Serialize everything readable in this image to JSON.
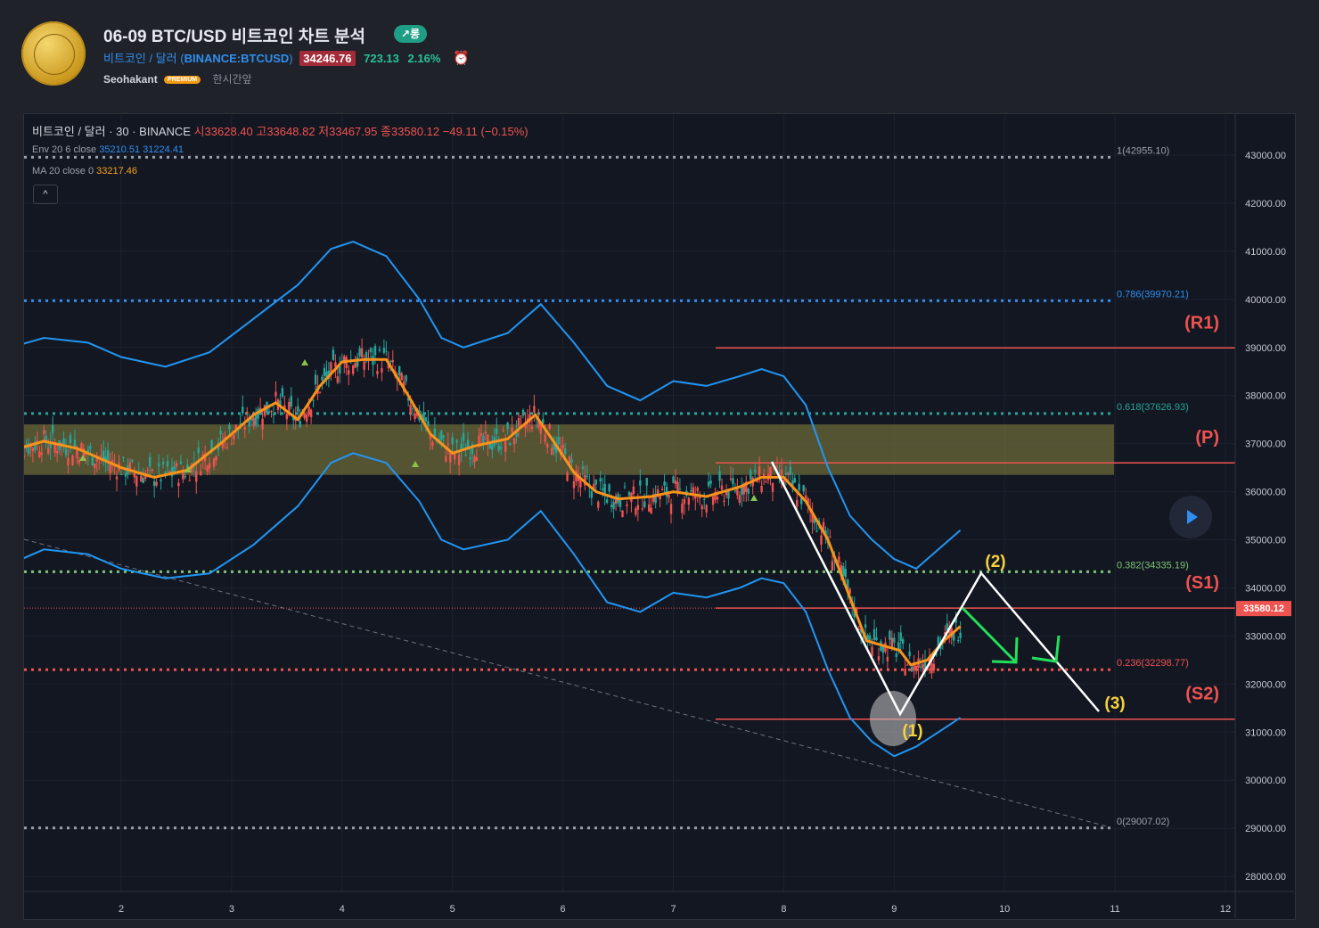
{
  "header": {
    "title": "06-09 BTC/USD 비트코인 차트 분석",
    "long_badge": "↗롱",
    "symbol_name": "비트코인 / 달러",
    "symbol_exchange": "BINANCE:BTCUSD",
    "last_price": "34246.76",
    "change": "723.13",
    "change_pct": "2.16%",
    "author": "Seohakant",
    "premium": "PREMIUM",
    "time_ago": "한시간앞"
  },
  "legend": {
    "symbol": "비트코인 / 달러 · 30 · BINANCE",
    "ohlc": "시33628.40 고33648.82 저33467.95 종33580.12 −49.11 (−0.15%)",
    "env_label": "Env 20 6 close",
    "env_upper": "35210.51",
    "env_lower": "31224.41",
    "ma_label": "MA 20 close 0",
    "ma_value": "33217.46",
    "collapse": "^"
  },
  "colors": {
    "background": "#131722",
    "envelope": "#2196f3",
    "ma": "#f7931a",
    "level_line": "#ef5350",
    "zone": "#6b6a3a",
    "up_candle": "#26a69a",
    "down_candle": "#ef5350",
    "annotation_yellow": "#f5d33a",
    "arrow_green": "#22e05a"
  },
  "chart_data": {
    "type": "candlestick",
    "x_ticks": [
      "2",
      "3",
      "4",
      "5",
      "6",
      "7",
      "8",
      "9",
      "10",
      "11",
      "12"
    ],
    "y_ticks": [
      "43000.00",
      "42000.00",
      "41000.00",
      "40000.00",
      "39000.00",
      "38000.00",
      "37000.00",
      "36000.00",
      "35000.00",
      "34000.00",
      "33000.00",
      "32000.00",
      "31000.00",
      "30000.00",
      "29000.00",
      "28000.00"
    ],
    "ylim": [
      27500,
      43600
    ],
    "current_price": 33580.12,
    "current_price_label": "33580.12",
    "fib_levels": [
      {
        "label": "1(42955.10)",
        "value": 42955.1,
        "color": "#9aa0aa"
      },
      {
        "label": "0.786(39970.21)",
        "value": 39970.21,
        "color": "#2f8ff0"
      },
      {
        "label": "0.618(37626.93)",
        "value": 37626.93,
        "color": "#26a69a"
      },
      {
        "label": "0.382(34335.19)",
        "value": 34335.19,
        "color": "#7cc576"
      },
      {
        "label": "0.236(32298.77)",
        "value": 32298.77,
        "color": "#ef5350"
      },
      {
        "label": "0(29007.02)",
        "value": 29007.02,
        "color": "#9aa0aa"
      }
    ],
    "pivot_levels": [
      {
        "label": "(R1)",
        "value": 38990
      },
      {
        "label": "(P)",
        "value": 36600
      },
      {
        "label": "(S1)",
        "value": 33580
      },
      {
        "label": "(S2)",
        "value": 31270
      }
    ],
    "zone": [
      36350,
      37400
    ],
    "wave_labels": [
      "(1)",
      "(2)",
      "(3)"
    ],
    "ma_series": [
      [
        1.0,
        36850
      ],
      [
        1.3,
        37050
      ],
      [
        1.6,
        36900
      ],
      [
        2.0,
        36500
      ],
      [
        2.3,
        36300
      ],
      [
        2.6,
        36450
      ],
      [
        2.9,
        37000
      ],
      [
        3.2,
        37600
      ],
      [
        3.4,
        37850
      ],
      [
        3.6,
        37500
      ],
      [
        3.8,
        38200
      ],
      [
        4.0,
        38700
      ],
      [
        4.2,
        38750
      ],
      [
        4.4,
        38750
      ],
      [
        4.6,
        38000
      ],
      [
        4.8,
        37200
      ],
      [
        5.0,
        36800
      ],
      [
        5.2,
        36950
      ],
      [
        5.5,
        37100
      ],
      [
        5.75,
        37600
      ],
      [
        5.9,
        37100
      ],
      [
        6.1,
        36400
      ],
      [
        6.3,
        36000
      ],
      [
        6.5,
        35850
      ],
      [
        6.8,
        35900
      ],
      [
        7.0,
        36000
      ],
      [
        7.3,
        35900
      ],
      [
        7.6,
        36100
      ],
      [
        7.8,
        36300
      ],
      [
        8.0,
        36300
      ],
      [
        8.2,
        35800
      ],
      [
        8.4,
        35000
      ],
      [
        8.6,
        33800
      ],
      [
        8.75,
        32900
      ],
      [
        8.9,
        32800
      ],
      [
        9.05,
        32700
      ],
      [
        9.15,
        32400
      ],
      [
        9.3,
        32500
      ],
      [
        9.45,
        32900
      ],
      [
        9.6,
        33200
      ]
    ],
    "env_upper_series": [
      [
        1.0,
        39000
      ],
      [
        1.3,
        39200
      ],
      [
        1.7,
        39100
      ],
      [
        2.0,
        38800
      ],
      [
        2.4,
        38600
      ],
      [
        2.8,
        38900
      ],
      [
        3.2,
        39600
      ],
      [
        3.6,
        40300
      ],
      [
        3.9,
        41050
      ],
      [
        4.1,
        41200
      ],
      [
        4.4,
        40900
      ],
      [
        4.7,
        40000
      ],
      [
        4.9,
        39200
      ],
      [
        5.1,
        39000
      ],
      [
        5.5,
        39300
      ],
      [
        5.8,
        39900
      ],
      [
        6.1,
        39100
      ],
      [
        6.4,
        38200
      ],
      [
        6.7,
        37900
      ],
      [
        7.0,
        38300
      ],
      [
        7.3,
        38200
      ],
      [
        7.6,
        38400
      ],
      [
        7.8,
        38550
      ],
      [
        8.0,
        38400
      ],
      [
        8.2,
        37800
      ],
      [
        8.4,
        36500
      ],
      [
        8.6,
        35500
      ],
      [
        8.8,
        35000
      ],
      [
        9.0,
        34600
      ],
      [
        9.2,
        34400
      ],
      [
        9.4,
        34800
      ],
      [
        9.6,
        35200
      ]
    ],
    "env_lower_series": [
      [
        1.0,
        34500
      ],
      [
        1.3,
        34800
      ],
      [
        1.7,
        34700
      ],
      [
        2.0,
        34400
      ],
      [
        2.4,
        34200
      ],
      [
        2.8,
        34300
      ],
      [
        3.2,
        34900
      ],
      [
        3.6,
        35700
      ],
      [
        3.9,
        36600
      ],
      [
        4.1,
        36800
      ],
      [
        4.4,
        36600
      ],
      [
        4.7,
        35800
      ],
      [
        4.9,
        35000
      ],
      [
        5.1,
        34800
      ],
      [
        5.5,
        35000
      ],
      [
        5.8,
        35600
      ],
      [
        6.1,
        34700
      ],
      [
        6.4,
        33700
      ],
      [
        6.7,
        33500
      ],
      [
        7.0,
        33900
      ],
      [
        7.3,
        33800
      ],
      [
        7.6,
        34000
      ],
      [
        7.8,
        34200
      ],
      [
        8.0,
        34100
      ],
      [
        8.2,
        33500
      ],
      [
        8.4,
        32300
      ],
      [
        8.6,
        31300
      ],
      [
        8.8,
        30800
      ],
      [
        9.0,
        30500
      ],
      [
        9.2,
        30700
      ],
      [
        9.4,
        31000
      ],
      [
        9.6,
        31300
      ]
    ]
  }
}
